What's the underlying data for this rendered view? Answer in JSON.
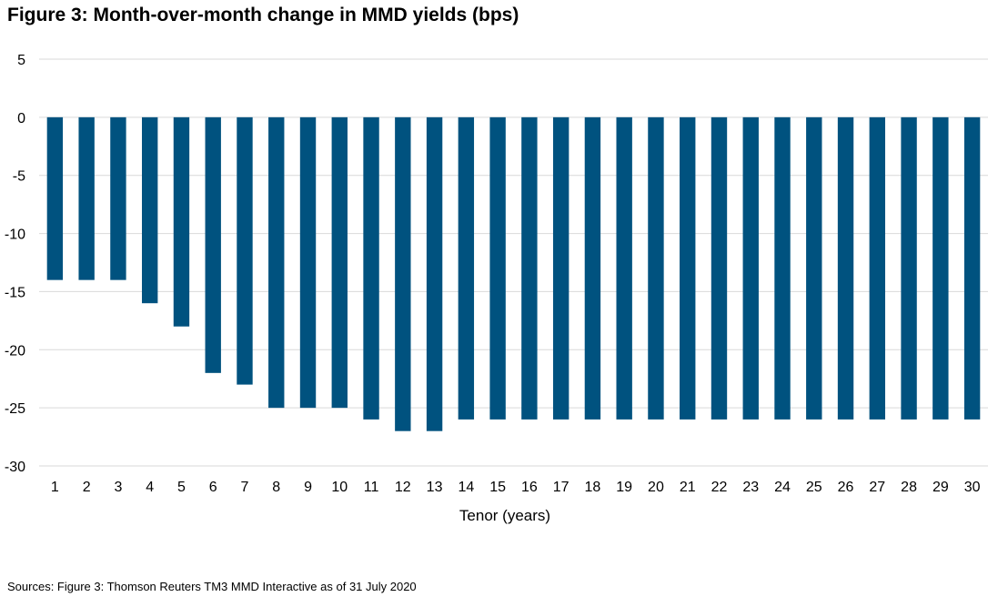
{
  "chart_data": {
    "type": "bar",
    "title": "Figure 3: Month-over-month change in MMD yields (bps)",
    "xlabel": "Tenor (years)",
    "ylabel": "",
    "categories": [
      "1",
      "2",
      "3",
      "4",
      "5",
      "6",
      "7",
      "8",
      "9",
      "10",
      "11",
      "12",
      "13",
      "14",
      "15",
      "16",
      "17",
      "18",
      "19",
      "20",
      "21",
      "22",
      "23",
      "24",
      "25",
      "26",
      "27",
      "28",
      "29",
      "30"
    ],
    "values": [
      -14,
      -14,
      -14,
      -16,
      -18,
      -22,
      -23,
      -25,
      -25,
      -25,
      -26,
      -27,
      -27,
      -26,
      -26,
      -26,
      -26,
      -26,
      -26,
      -26,
      -26,
      -26,
      -26,
      -26,
      -26,
      -26,
      -26,
      -26,
      -26,
      -26
    ],
    "ylim": [
      -30,
      5
    ],
    "yticks": [
      "5",
      "0",
      "-5",
      "-10",
      "-15",
      "-20",
      "-25",
      "-30"
    ],
    "grid": true,
    "bar_color": "#00527f",
    "grid_color": "#d9d9d9"
  },
  "source": "Sources: Figure 3: Thomson Reuters TM3 MMD Interactive as of 31 July 2020"
}
